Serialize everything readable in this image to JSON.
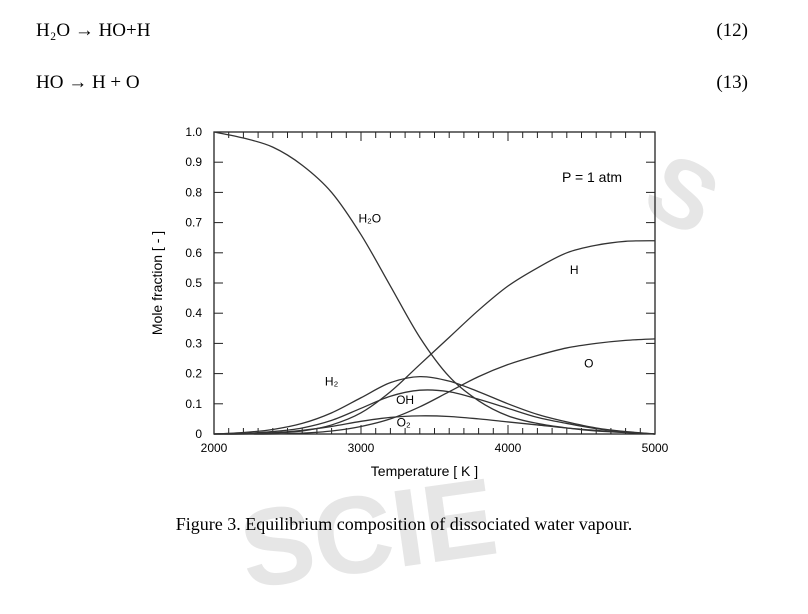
{
  "equations": [
    {
      "text": "H₂O → HO+H",
      "number": "(12)"
    },
    {
      "text": "HO → H + O",
      "number": "(13)"
    }
  ],
  "watermark": {
    "w1": "S",
    "w2": "SCIE"
  },
  "caption": "Figure 3.  Equilibrium composition of dissociated water vapour.",
  "chart_data": {
    "type": "line",
    "xlabel": "Temperature  [ K ]",
    "ylabel": "Mole fraction  [ - ]",
    "xlim": [
      2000,
      5000
    ],
    "ylim": [
      0,
      1.0
    ],
    "xticks": [
      2000,
      3000,
      4000,
      5000
    ],
    "yticks": [
      0,
      0.1,
      0.2,
      0.3,
      0.4,
      0.5,
      0.6,
      0.7,
      0.8,
      0.9,
      1.0
    ],
    "ytick_labels": [
      "0",
      "0.1",
      "0.2",
      "0.3",
      "0.4",
      "0.5",
      "0.6",
      "0.7",
      "0.8",
      "0.9",
      "1.0"
    ],
    "annotation": "P = 1 atm",
    "grid": false,
    "series": [
      {
        "name": "H₂O",
        "x": [
          2000,
          2200,
          2400,
          2600,
          2800,
          3000,
          3200,
          3400,
          3600,
          3800,
          4000,
          4200,
          4400,
          4600,
          4800,
          5000
        ],
        "y": [
          1.0,
          0.98,
          0.95,
          0.89,
          0.8,
          0.66,
          0.49,
          0.32,
          0.19,
          0.11,
          0.06,
          0.035,
          0.02,
          0.01,
          0.005,
          0.0
        ]
      },
      {
        "name": "H",
        "x": [
          2000,
          2200,
          2400,
          2600,
          2800,
          3000,
          3200,
          3400,
          3600,
          3800,
          4000,
          4200,
          4400,
          4600,
          4800,
          5000
        ],
        "y": [
          0.0,
          0.0,
          0.003,
          0.01,
          0.03,
          0.07,
          0.14,
          0.23,
          0.32,
          0.41,
          0.49,
          0.55,
          0.6,
          0.625,
          0.638,
          0.64
        ]
      },
      {
        "name": "O",
        "x": [
          2000,
          2200,
          2400,
          2600,
          2800,
          3000,
          3200,
          3400,
          3600,
          3800,
          4000,
          4200,
          4400,
          4600,
          4800,
          5000
        ],
        "y": [
          0.0,
          0.0,
          0.0,
          0.003,
          0.01,
          0.025,
          0.05,
          0.09,
          0.14,
          0.19,
          0.23,
          0.26,
          0.285,
          0.3,
          0.31,
          0.315
        ]
      },
      {
        "name": "H₂",
        "x": [
          2000,
          2200,
          2400,
          2600,
          2800,
          3000,
          3200,
          3400,
          3600,
          3800,
          4000,
          4200,
          4400,
          4600,
          4800,
          5000
        ],
        "y": [
          0.0,
          0.005,
          0.015,
          0.035,
          0.07,
          0.12,
          0.17,
          0.19,
          0.175,
          0.14,
          0.1,
          0.065,
          0.04,
          0.02,
          0.008,
          0.0
        ]
      },
      {
        "name": "OH",
        "x": [
          2000,
          2200,
          2400,
          2600,
          2800,
          3000,
          3200,
          3400,
          3600,
          3800,
          4000,
          4200,
          4400,
          4600,
          4800,
          5000
        ],
        "y": [
          0.0,
          0.002,
          0.008,
          0.02,
          0.045,
          0.085,
          0.125,
          0.145,
          0.14,
          0.115,
          0.085,
          0.055,
          0.035,
          0.018,
          0.007,
          0.0
        ]
      },
      {
        "name": "O₂",
        "x": [
          2000,
          2200,
          2400,
          2600,
          2800,
          3000,
          3200,
          3400,
          3600,
          3800,
          4000,
          4200,
          4400,
          4600,
          4800,
          5000
        ],
        "y": [
          0.0,
          0.001,
          0.004,
          0.012,
          0.025,
          0.042,
          0.055,
          0.06,
          0.058,
          0.05,
          0.04,
          0.03,
          0.02,
          0.012,
          0.005,
          0.0
        ]
      }
    ],
    "series_labels": [
      {
        "text": "H₂O",
        "x": 3060,
        "y": 0.7
      },
      {
        "text": "H",
        "x": 4450,
        "y": 0.53
      },
      {
        "text": "O",
        "x": 4550,
        "y": 0.22
      },
      {
        "text": "H₂",
        "x": 2800,
        "y": 0.16
      },
      {
        "text": "OH",
        "x": 3300,
        "y": 0.1
      },
      {
        "text": "O₂",
        "x": 3290,
        "y": 0.025
      }
    ]
  }
}
